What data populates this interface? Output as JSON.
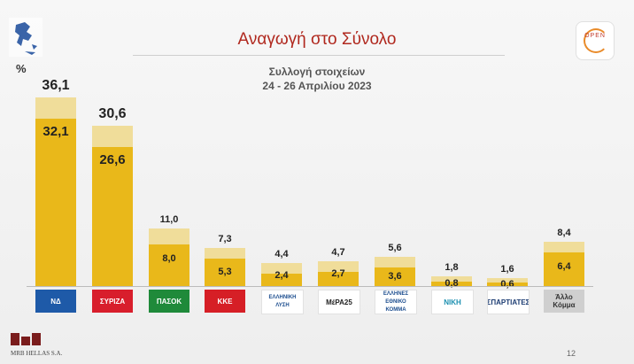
{
  "header": {
    "title": "Αναγωγή στο Σύνολο",
    "collection_label": "Συλλογή στοιχείων",
    "collection_dates": "24 - 26 Απριλίου 2023",
    "percent_sign": "%",
    "channel_logo_text": "OPEN"
  },
  "footer": {
    "pollster_logo": "MRB",
    "pollster_sub": "HELLAS S.A.",
    "page_number": "12"
  },
  "chart_data": {
    "type": "bar",
    "stacked_overlay": true,
    "categories": [
      "ΝΔ",
      "ΣΥΡΙΖΑ",
      "ΠΑΣΟΚ",
      "ΚΚΕ",
      "Ελληνική Λύση",
      "ΜέΡΑ25",
      "Έλληνες Εθνικό Κόμμα",
      "Νίκη",
      "Σπαρτιάτες",
      "Άλλο Κόμμα"
    ],
    "series": [
      {
        "values": [
          32.1,
          26.6,
          8.0,
          5.3,
          2.4,
          2.7,
          3.6,
          0.8,
          0.6,
          6.4
        ]
      },
      {
        "values": [
          36.1,
          30.6,
          11.0,
          7.3,
          4.4,
          4.7,
          5.6,
          1.8,
          1.6,
          8.4
        ]
      }
    ],
    "base_labels": [
      "32,1",
      "26,6",
      "8,0",
      "5,3",
      "2,4",
      "2,7",
      "3,6",
      "0,8",
      "0,6",
      "6,4"
    ],
    "total_labels": [
      "36,1",
      "30,6",
      "11,0",
      "7,3",
      "4,4",
      "4,7",
      "5,6",
      "1,8",
      "1,6",
      "8,4"
    ],
    "colors": {
      "base": "#e9b81a",
      "overlay": "#f0dd9a"
    },
    "ylim": [
      0,
      40
    ]
  },
  "parties": [
    {
      "text": "ΝΔ",
      "bg": "#1e5aa8",
      "fg": "#ffffff",
      "icon": "nd-logo-icon"
    },
    {
      "text": "ΣΥΡΙΖΑ",
      "bg": "#d81e2c",
      "fg": "#ffffff",
      "icon": "syriza-logo-icon"
    },
    {
      "text": "ΠΑΣΟΚ",
      "bg": "#1f8a3a",
      "fg": "#ffffff",
      "icon": "pasok-logo-icon"
    },
    {
      "text": "ΚΚΕ",
      "bg": "#d61f26",
      "fg": "#ffffff",
      "icon": "kke-logo-icon"
    },
    {
      "text": "ΕΛΛΗΝΙΚΗ ΛΥΣΗ",
      "bg": "#ffffff",
      "fg": "#1d4e8f",
      "icon": "elliniki-lysi-logo-icon"
    },
    {
      "text": "ΜέΡΑ25",
      "bg": "#ffffff",
      "fg": "#222222",
      "icon": "mera25-logo-icon"
    },
    {
      "text": "ΕΛΛΗΝΕΣ ΕΘΝΙΚΟ ΚΟΜΜΑ",
      "bg": "#ffffff",
      "fg": "#1d4e8f",
      "icon": "ellines-logo-icon"
    },
    {
      "text": "ΝΙΚΗ",
      "bg": "#ffffff",
      "fg": "#1b8fb0",
      "icon": "niki-logo-icon"
    },
    {
      "text": "ΣΠΑΡΤΙΑΤΕΣ",
      "bg": "#ffffff",
      "fg": "#1d3d73",
      "icon": "spartiates-logo-icon"
    },
    {
      "text": "Άλλο Κόμμα",
      "bg": "#cfcfcf",
      "fg": "#333333",
      "icon": "other-party-label"
    }
  ]
}
